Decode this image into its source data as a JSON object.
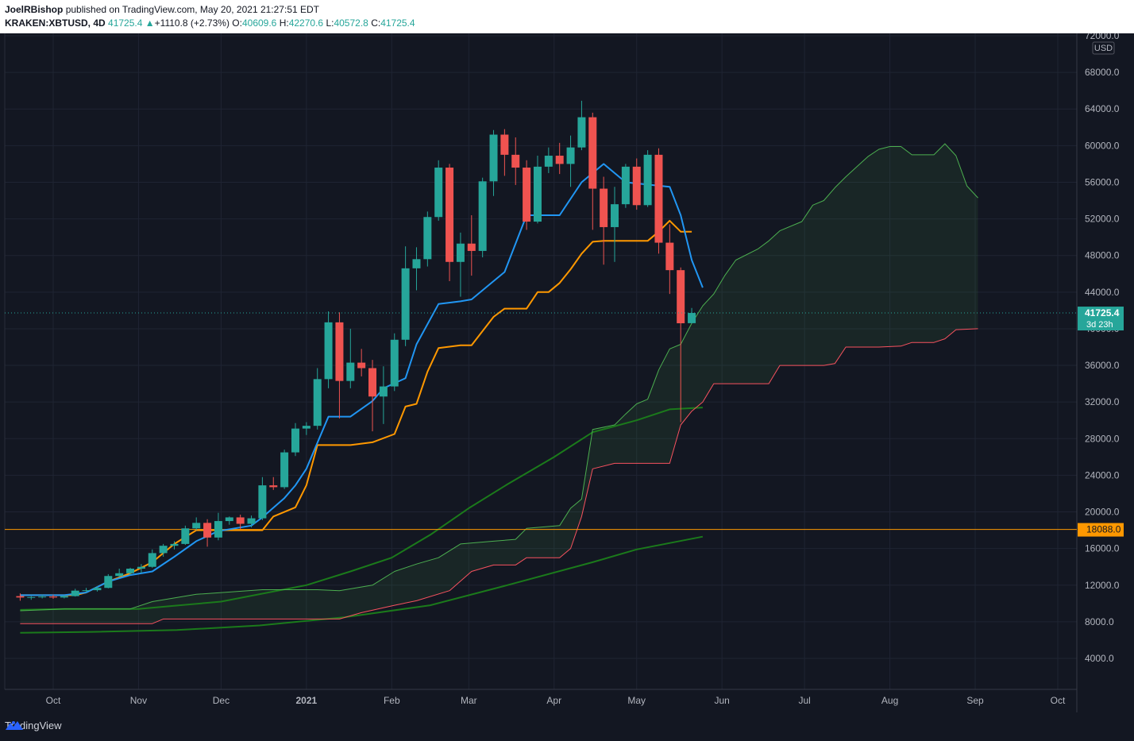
{
  "header": {
    "author": "JoelRBishop",
    "published_text": "published on TradingView.com, May 20, 2021 21:27:51 EDT",
    "symbol": "KRAKEN:XBTUSD, 4D",
    "last": "41725.4",
    "change": "+1110.8 (+2.73%)",
    "o_label": "O:",
    "o": "40609.6",
    "h_label": "H:",
    "h": "42270.6",
    "l_label": "L:",
    "l": "40572.8",
    "c_label": "C:",
    "c": "41725.4"
  },
  "footer": {
    "brand": "TradingView"
  },
  "colors": {
    "up": "#26a69a",
    "down": "#ef5350",
    "conversion": "#2196f3",
    "base": "#ff9800",
    "span_a": "#4caf50",
    "span_b": "#f7525f",
    "lagging_ma": "#1b7a1b",
    "bg": "#131722",
    "grid": "#1f2433"
  },
  "chart_data": {
    "type": "candlestick",
    "currency": "USD",
    "y_ticks": [
      "72000.0",
      "68000.0",
      "64000.0",
      "60000.0",
      "56000.0",
      "52000.0",
      "48000.0",
      "44000.0",
      "40000.0",
      "36000.0",
      "32000.0",
      "28000.0",
      "24000.0",
      "20000.0",
      "16000.0",
      "12000.0",
      "8000.0",
      "4000.0"
    ],
    "y_tick_values": [
      72000,
      68000,
      64000,
      60000,
      56000,
      52000,
      48000,
      44000,
      40000,
      36000,
      32000,
      28000,
      24000,
      20000,
      16000,
      12000,
      8000,
      4000
    ],
    "x_labels": [
      "Oct",
      "Nov",
      "Dec",
      "2021",
      "Feb",
      "Mar",
      "Apr",
      "May",
      "Jun",
      "Jul",
      "Aug",
      "Sep",
      "Oct"
    ],
    "x_label_dates": [
      "2020-10-01",
      "2020-11-01",
      "2020-12-01",
      "2021-01-01",
      "2021-02-01",
      "2021-03-01",
      "2021-04-01",
      "2021-05-01",
      "2021-06-01",
      "2021-07-01",
      "2021-08-01",
      "2021-09-01",
      "2021-10-01"
    ],
    "last_price_label": "41725.4",
    "countdown_label": "3d 23h",
    "horizontal_line_label": "18088.0",
    "horizontal_line_value": 18088,
    "candles": [
      {
        "d": "2020-09-19",
        "o": 10800,
        "h": 11100,
        "l": 10300,
        "c": 10650
      },
      {
        "d": "2020-09-23",
        "o": 10650,
        "h": 10800,
        "l": 10400,
        "c": 10700
      },
      {
        "d": "2020-09-27",
        "o": 10700,
        "h": 10950,
        "l": 10550,
        "c": 10750
      },
      {
        "d": "2020-10-01",
        "o": 10750,
        "h": 10950,
        "l": 10500,
        "c": 10650
      },
      {
        "d": "2020-10-05",
        "o": 10650,
        "h": 10900,
        "l": 10550,
        "c": 10800
      },
      {
        "d": "2020-10-09",
        "o": 10800,
        "h": 11600,
        "l": 10750,
        "c": 11400
      },
      {
        "d": "2020-10-13",
        "o": 11400,
        "h": 11700,
        "l": 11200,
        "c": 11450
      },
      {
        "d": "2020-10-17",
        "o": 11450,
        "h": 11900,
        "l": 11300,
        "c": 11700
      },
      {
        "d": "2020-10-21",
        "o": 11700,
        "h": 13200,
        "l": 11650,
        "c": 13000
      },
      {
        "d": "2020-10-25",
        "o": 13000,
        "h": 13800,
        "l": 12900,
        "c": 13300
      },
      {
        "d": "2020-10-29",
        "o": 13300,
        "h": 13900,
        "l": 13100,
        "c": 13800
      },
      {
        "d": "2020-11-02",
        "o": 13800,
        "h": 14300,
        "l": 13300,
        "c": 14000
      },
      {
        "d": "2020-11-06",
        "o": 14000,
        "h": 15900,
        "l": 13900,
        "c": 15500
      },
      {
        "d": "2020-11-10",
        "o": 15500,
        "h": 16500,
        "l": 15100,
        "c": 16300
      },
      {
        "d": "2020-11-14",
        "o": 16300,
        "h": 16800,
        "l": 15900,
        "c": 16500
      },
      {
        "d": "2020-11-18",
        "o": 16500,
        "h": 18500,
        "l": 16400,
        "c": 18200
      },
      {
        "d": "2020-11-22",
        "o": 18200,
        "h": 19400,
        "l": 18000,
        "c": 18800
      },
      {
        "d": "2020-11-26",
        "o": 18800,
        "h": 19200,
        "l": 16200,
        "c": 17200
      },
      {
        "d": "2020-11-30",
        "o": 17200,
        "h": 19900,
        "l": 16900,
        "c": 19000
      },
      {
        "d": "2020-12-04",
        "o": 19000,
        "h": 19500,
        "l": 18600,
        "c": 19400
      },
      {
        "d": "2020-12-08",
        "o": 19400,
        "h": 19700,
        "l": 18100,
        "c": 18700
      },
      {
        "d": "2020-12-12",
        "o": 18700,
        "h": 19600,
        "l": 18300,
        "c": 19300
      },
      {
        "d": "2020-12-16",
        "o": 19300,
        "h": 23800,
        "l": 19100,
        "c": 22900
      },
      {
        "d": "2020-12-20",
        "o": 22900,
        "h": 23800,
        "l": 22400,
        "c": 22700
      },
      {
        "d": "2020-12-24",
        "o": 22700,
        "h": 26800,
        "l": 22500,
        "c": 26500
      },
      {
        "d": "2020-12-28",
        "o": 26500,
        "h": 29700,
        "l": 26100,
        "c": 29100
      },
      {
        "d": "2021-01-01",
        "o": 29100,
        "h": 29800,
        "l": 28400,
        "c": 29400
      },
      {
        "d": "2021-01-05",
        "o": 29400,
        "h": 35700,
        "l": 29000,
        "c": 34500
      },
      {
        "d": "2021-01-09",
        "o": 34500,
        "h": 41900,
        "l": 33500,
        "c": 40700
      },
      {
        "d": "2021-01-13",
        "o": 40700,
        "h": 41800,
        "l": 30200,
        "c": 34300
      },
      {
        "d": "2021-01-17",
        "o": 34300,
        "h": 40000,
        "l": 33500,
        "c": 36300
      },
      {
        "d": "2021-01-21",
        "o": 36300,
        "h": 37800,
        "l": 34800,
        "c": 35700
      },
      {
        "d": "2021-01-25",
        "o": 35700,
        "h": 36600,
        "l": 28800,
        "c": 32600
      },
      {
        "d": "2021-01-29",
        "o": 32600,
        "h": 35900,
        "l": 29600,
        "c": 33700
      },
      {
        "d": "2021-02-02",
        "o": 33700,
        "h": 39500,
        "l": 33200,
        "c": 38800
      },
      {
        "d": "2021-02-06",
        "o": 38800,
        "h": 49000,
        "l": 38100,
        "c": 46600
      },
      {
        "d": "2021-02-10",
        "o": 46600,
        "h": 48900,
        "l": 44200,
        "c": 47600
      },
      {
        "d": "2021-02-14",
        "o": 47600,
        "h": 52800,
        "l": 46800,
        "c": 52200
      },
      {
        "d": "2021-02-18",
        "o": 52200,
        "h": 58400,
        "l": 51800,
        "c": 57600
      },
      {
        "d": "2021-02-22",
        "o": 57600,
        "h": 58000,
        "l": 45200,
        "c": 47300
      },
      {
        "d": "2021-02-26",
        "o": 47300,
        "h": 50500,
        "l": 43500,
        "c": 49300
      },
      {
        "d": "2021-03-02",
        "o": 49300,
        "h": 52400,
        "l": 45800,
        "c": 48500
      },
      {
        "d": "2021-03-06",
        "o": 48500,
        "h": 56500,
        "l": 47800,
        "c": 56100
      },
      {
        "d": "2021-03-10",
        "o": 56100,
        "h": 61700,
        "l": 54500,
        "c": 61200
      },
      {
        "d": "2021-03-14",
        "o": 61200,
        "h": 61800,
        "l": 56700,
        "c": 59000
      },
      {
        "d": "2021-03-18",
        "o": 59000,
        "h": 60900,
        "l": 55700,
        "c": 57600
      },
      {
        "d": "2021-03-22",
        "o": 57600,
        "h": 58400,
        "l": 50800,
        "c": 51700
      },
      {
        "d": "2021-03-26",
        "o": 51700,
        "h": 58900,
        "l": 51500,
        "c": 57700
      },
      {
        "d": "2021-03-30",
        "o": 57700,
        "h": 59800,
        "l": 57000,
        "c": 58900
      },
      {
        "d": "2021-04-03",
        "o": 58900,
        "h": 60300,
        "l": 56900,
        "c": 58000
      },
      {
        "d": "2021-04-07",
        "o": 58000,
        "h": 61100,
        "l": 55500,
        "c": 59800
      },
      {
        "d": "2021-04-11",
        "o": 59800,
        "h": 64900,
        "l": 59500,
        "c": 63100
      },
      {
        "d": "2021-04-15",
        "o": 63100,
        "h": 63600,
        "l": 50800,
        "c": 55300
      },
      {
        "d": "2021-04-19",
        "o": 55300,
        "h": 56600,
        "l": 47000,
        "c": 51100
      },
      {
        "d": "2021-04-23",
        "o": 51100,
        "h": 55500,
        "l": 47300,
        "c": 53600
      },
      {
        "d": "2021-04-27",
        "o": 53600,
        "h": 58000,
        "l": 53200,
        "c": 57700
      },
      {
        "d": "2021-05-01",
        "o": 57700,
        "h": 58600,
        "l": 53000,
        "c": 53500
      },
      {
        "d": "2021-05-05",
        "o": 53500,
        "h": 59500,
        "l": 53300,
        "c": 59000
      },
      {
        "d": "2021-05-09",
        "o": 59000,
        "h": 59700,
        "l": 48200,
        "c": 49400
      },
      {
        "d": "2021-05-13",
        "o": 49400,
        "h": 51400,
        "l": 43800,
        "c": 46400
      },
      {
        "d": "2021-05-17",
        "o": 46400,
        "h": 46700,
        "l": 29800,
        "c": 40600
      },
      {
        "d": "2021-05-21",
        "o": 40609.6,
        "h": 42270.6,
        "l": 40572.8,
        "c": 41725.4
      }
    ],
    "conversion_line": [
      [
        "2020-09-19",
        10900
      ],
      [
        "2020-10-05",
        10900
      ],
      [
        "2020-10-13",
        11200
      ],
      [
        "2020-10-21",
        12400
      ],
      [
        "2020-10-29",
        13100
      ],
      [
        "2020-11-06",
        13500
      ],
      [
        "2020-11-14",
        15100
      ],
      [
        "2020-11-22",
        16800
      ],
      [
        "2020-11-30",
        17900
      ],
      [
        "2020-12-12",
        18500
      ],
      [
        "2020-12-16",
        19400
      ],
      [
        "2020-12-24",
        21500
      ],
      [
        "2020-12-28",
        22900
      ],
      [
        "2021-01-01",
        24700
      ],
      [
        "2021-01-09",
        30400
      ],
      [
        "2021-01-17",
        30400
      ],
      [
        "2021-01-25",
        32100
      ],
      [
        "2021-01-29",
        33500
      ],
      [
        "2021-02-06",
        34600
      ],
      [
        "2021-02-10",
        38300
      ],
      [
        "2021-02-18",
        42700
      ],
      [
        "2021-02-26",
        43000
      ],
      [
        "2021-03-02",
        43200
      ],
      [
        "2021-03-10",
        45200
      ],
      [
        "2021-03-14",
        46200
      ],
      [
        "2021-03-22",
        52400
      ],
      [
        "2021-04-03",
        52400
      ],
      [
        "2021-04-11",
        56000
      ],
      [
        "2021-04-19",
        58000
      ],
      [
        "2021-04-27",
        56000
      ],
      [
        "2021-05-13",
        55500
      ],
      [
        "2021-05-17",
        52400
      ],
      [
        "2021-05-21",
        47500
      ],
      [
        "2021-05-25",
        44500
      ]
    ],
    "base_line": [
      [
        "2020-09-19",
        10900
      ],
      [
        "2020-10-09",
        10900
      ],
      [
        "2020-10-13",
        11200
      ],
      [
        "2020-10-21",
        12400
      ],
      [
        "2020-10-29",
        13300
      ],
      [
        "2020-11-06",
        14500
      ],
      [
        "2020-11-14",
        16500
      ],
      [
        "2020-11-22",
        18000
      ],
      [
        "2020-12-16",
        18000
      ],
      [
        "2020-12-20",
        19500
      ],
      [
        "2020-12-28",
        20500
      ],
      [
        "2021-01-01",
        22900
      ],
      [
        "2021-01-05",
        27300
      ],
      [
        "2021-01-17",
        27300
      ],
      [
        "2021-01-25",
        27600
      ],
      [
        "2021-02-02",
        28500
      ],
      [
        "2021-02-06",
        31500
      ],
      [
        "2021-02-10",
        31800
      ],
      [
        "2021-02-14",
        35300
      ],
      [
        "2021-02-18",
        37900
      ],
      [
        "2021-02-26",
        38200
      ],
      [
        "2021-03-02",
        38200
      ],
      [
        "2021-03-10",
        41300
      ],
      [
        "2021-03-14",
        42200
      ],
      [
        "2021-03-22",
        42200
      ],
      [
        "2021-03-26",
        44000
      ],
      [
        "2021-03-30",
        44000
      ],
      [
        "2021-04-03",
        45000
      ],
      [
        "2021-04-07",
        46500
      ],
      [
        "2021-04-11",
        48200
      ],
      [
        "2021-04-15",
        49500
      ],
      [
        "2021-04-19",
        49600
      ],
      [
        "2021-05-05",
        49600
      ],
      [
        "2021-05-09",
        50600
      ],
      [
        "2021-05-13",
        51800
      ],
      [
        "2021-05-17",
        50600
      ],
      [
        "2021-05-21",
        50600
      ]
    ],
    "leading_span_a": [
      [
        "2020-09-19",
        9200
      ],
      [
        "2020-10-05",
        9400
      ],
      [
        "2020-10-29",
        9400
      ],
      [
        "2020-11-06",
        10200
      ],
      [
        "2020-11-22",
        11000
      ],
      [
        "2020-12-16",
        11500
      ],
      [
        "2021-01-05",
        11500
      ],
      [
        "2021-01-13",
        11400
      ],
      [
        "2021-01-25",
        12000
      ],
      [
        "2021-02-02",
        13500
      ],
      [
        "2021-02-10",
        14300
      ],
      [
        "2021-02-18",
        15000
      ],
      [
        "2021-02-26",
        16500
      ],
      [
        "2021-03-10",
        16800
      ],
      [
        "2021-03-18",
        17000
      ],
      [
        "2021-03-22",
        18200
      ],
      [
        "2021-04-03",
        18500
      ],
      [
        "2021-04-07",
        20400
      ],
      [
        "2021-04-11",
        21400
      ],
      [
        "2021-04-15",
        29000
      ],
      [
        "2021-04-23",
        29500
      ],
      [
        "2021-04-27",
        30700
      ],
      [
        "2021-05-01",
        31800
      ],
      [
        "2021-05-05",
        32300
      ],
      [
        "2021-05-09",
        35500
      ],
      [
        "2021-05-13",
        37800
      ],
      [
        "2021-05-17",
        38300
      ],
      [
        "2021-05-21",
        40600
      ],
      [
        "2021-05-25",
        42500
      ],
      [
        "2021-05-29",
        43800
      ],
      [
        "2021-06-02",
        45800
      ],
      [
        "2021-06-06",
        47500
      ],
      [
        "2021-06-14",
        48700
      ],
      [
        "2021-06-18",
        49600
      ],
      [
        "2021-06-22",
        50700
      ],
      [
        "2021-06-30",
        51700
      ],
      [
        "2021-07-04",
        53500
      ],
      [
        "2021-07-08",
        54000
      ],
      [
        "2021-07-12",
        55400
      ],
      [
        "2021-07-16",
        56600
      ],
      [
        "2021-07-20",
        57700
      ],
      [
        "2021-07-24",
        58800
      ],
      [
        "2021-07-28",
        59600
      ],
      [
        "2021-08-01",
        59900
      ],
      [
        "2021-08-05",
        59900
      ],
      [
        "2021-08-09",
        59000
      ],
      [
        "2021-08-13",
        59000
      ],
      [
        "2021-08-17",
        59000
      ],
      [
        "2021-08-21",
        60200
      ],
      [
        "2021-08-25",
        58900
      ],
      [
        "2021-08-29",
        55600
      ],
      [
        "2021-09-02",
        54300
      ]
    ],
    "leading_span_b": [
      [
        "2020-09-19",
        7800
      ],
      [
        "2020-11-06",
        7800
      ],
      [
        "2020-11-10",
        8300
      ],
      [
        "2021-01-05",
        8300
      ],
      [
        "2021-01-13",
        8300
      ],
      [
        "2021-01-21",
        9000
      ],
      [
        "2021-02-02",
        9800
      ],
      [
        "2021-02-10",
        10300
      ],
      [
        "2021-02-22",
        11400
      ],
      [
        "2021-03-02",
        13500
      ],
      [
        "2021-03-10",
        14200
      ],
      [
        "2021-03-18",
        14200
      ],
      [
        "2021-03-22",
        15000
      ],
      [
        "2021-04-03",
        15000
      ],
      [
        "2021-04-07",
        16000
      ],
      [
        "2021-04-11",
        19500
      ],
      [
        "2021-04-15",
        24700
      ],
      [
        "2021-04-23",
        25300
      ],
      [
        "2021-05-05",
        25300
      ],
      [
        "2021-05-13",
        25300
      ],
      [
        "2021-05-17",
        29500
      ],
      [
        "2021-05-21",
        31000
      ],
      [
        "2021-05-25",
        32000
      ],
      [
        "2021-05-29",
        34000
      ],
      [
        "2021-06-18",
        34000
      ],
      [
        "2021-06-22",
        36000
      ],
      [
        "2021-07-08",
        36000
      ],
      [
        "2021-07-12",
        36200
      ],
      [
        "2021-07-16",
        38000
      ],
      [
        "2021-07-28",
        38000
      ],
      [
        "2021-08-05",
        38100
      ],
      [
        "2021-08-09",
        38500
      ],
      [
        "2021-08-17",
        38500
      ],
      [
        "2021-08-21",
        38900
      ],
      [
        "2021-08-25",
        39900
      ],
      [
        "2021-09-02",
        40000
      ]
    ],
    "ma_upper": [
      [
        "2020-09-19",
        9300
      ],
      [
        "2020-10-05",
        9400
      ],
      [
        "2020-11-01",
        9400
      ],
      [
        "2020-12-01",
        10200
      ],
      [
        "2021-01-01",
        12000
      ],
      [
        "2021-01-17",
        13500
      ],
      [
        "2021-02-01",
        15000
      ],
      [
        "2021-02-15",
        17500
      ],
      [
        "2021-03-01",
        20400
      ],
      [
        "2021-03-15",
        23000
      ],
      [
        "2021-04-01",
        26000
      ],
      [
        "2021-04-15",
        28700
      ],
      [
        "2021-05-01",
        30000
      ],
      [
        "2021-05-13",
        31200
      ],
      [
        "2021-05-25",
        31400
      ]
    ],
    "ma_lower": [
      [
        "2020-09-19",
        6800
      ],
      [
        "2020-10-15",
        6900
      ],
      [
        "2020-11-15",
        7100
      ],
      [
        "2020-12-15",
        7600
      ],
      [
        "2021-01-15",
        8500
      ],
      [
        "2021-02-15",
        9800
      ],
      [
        "2021-03-15",
        12000
      ],
      [
        "2021-04-15",
        14500
      ],
      [
        "2021-05-01",
        15900
      ],
      [
        "2021-05-25",
        17300
      ]
    ]
  }
}
